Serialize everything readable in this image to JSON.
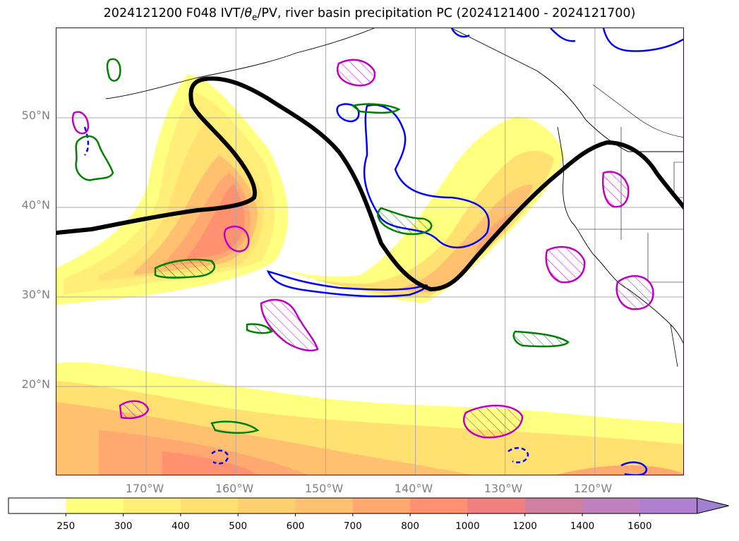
{
  "title": {
    "prefix": "2024121200 F048 IVT/",
    "theta": "θ",
    "theta_sub": "e",
    "suffix": "/PV, river basin precipitation PC (2024121400 - 2024121700)"
  },
  "map": {
    "lat_ticks": [
      "50°N",
      "40°N",
      "30°N",
      "20°N"
    ],
    "lat_values": [
      50,
      40,
      30,
      20
    ],
    "lon_ticks": [
      "170°W",
      "160°W",
      "150°W",
      "140°W",
      "130°W",
      "120°W"
    ],
    "lon_values": [
      -170,
      -160,
      -150,
      -140,
      -130,
      -120
    ],
    "extent": {
      "lon_min": -180,
      "lon_max": -110,
      "lat_min": 10,
      "lat_max": 60
    }
  },
  "colorbar": {
    "levels": [
      "250",
      "300",
      "400",
      "500",
      "600",
      "700",
      "800",
      "1000",
      "1200",
      "1400",
      "1600"
    ],
    "colors": [
      "#ffffff",
      "#ffff80",
      "#ffef78",
      "#ffe070",
      "#ffd070",
      "#ffc070",
      "#ffa870",
      "#ff9070",
      "#f08080",
      "#d080a0",
      "#c080c0",
      "#b080d0",
      "#a080d0"
    ],
    "extend": "max"
  },
  "styles": {
    "pv_color": "#000000",
    "theta_blue": "#0000ff",
    "theta_green": "#008000",
    "precip_magenta": "#c000c0"
  }
}
